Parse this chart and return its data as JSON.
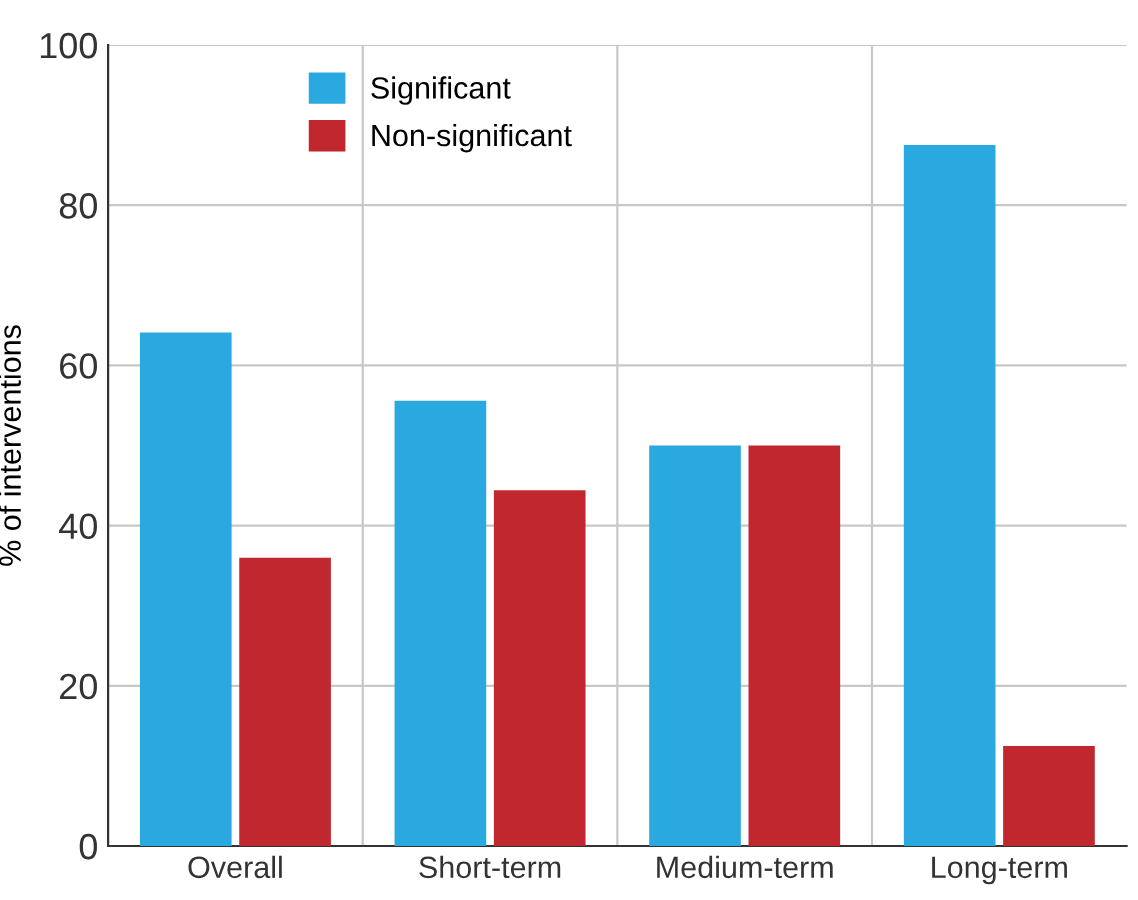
{
  "chart_data": {
    "type": "bar",
    "ylabel": "% of interventions",
    "categories": [
      "Overall",
      "Short-term",
      "Medium-term",
      "Long-term"
    ],
    "series": [
      {
        "name": "Significant",
        "color": "#29a9e0",
        "values": [
          64.1,
          55.6,
          50,
          87.5
        ]
      },
      {
        "name": "Non-significant",
        "color": "#c1272f",
        "values": [
          36,
          44.4,
          50,
          12.5
        ]
      }
    ],
    "ylim": [
      0,
      100
    ],
    "yticks": [
      0,
      20,
      40,
      60,
      80,
      100
    ],
    "grid": true,
    "legend": "top left"
  }
}
